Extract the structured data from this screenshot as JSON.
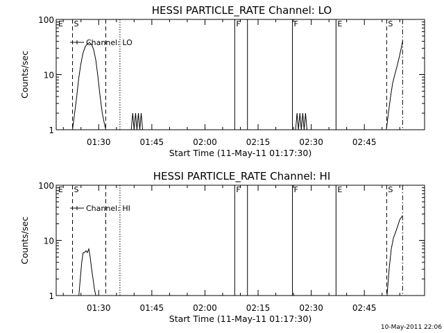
{
  "chart_data": [
    {
      "type": "line",
      "title": "HESSI PARTICLE_RATE Channel: LO",
      "xlabel": "Start Time (11-May-11 01:17:30)",
      "ylabel": "Counts/sec",
      "yscale": "log",
      "ylim": [
        1,
        100
      ],
      "y_ticks": [
        1,
        10,
        100
      ],
      "y_tick_labels": [
        "1",
        "10",
        "100"
      ],
      "xlim_minutes": [
        78.0,
        182.0
      ],
      "x_ticks_minutes": [
        90,
        105,
        120,
        135,
        150,
        165
      ],
      "x_tick_labels": [
        "01:30",
        "01:45",
        "02:00",
        "02:15",
        "02:30",
        "02:45"
      ],
      "legend": "Channel: LO",
      "legend_placement": "top-left",
      "series": [
        {
          "name": "Channel: LO",
          "segments": [
            {
              "x": [
                82.6,
                83.2,
                83.8,
                84.4,
                85.0,
                85.6,
                86.2,
                86.8,
                87.4,
                88.0,
                88.6,
                89.2,
                89.8,
                90.4,
                91.0,
                91.6,
                92.0
              ],
              "y": [
                1,
                2,
                4,
                9,
                16,
                25,
                32,
                36,
                38,
                35,
                28,
                18,
                9,
                4,
                2,
                1.3,
                1
              ]
            },
            {
              "x": [
                99.2,
                99.6,
                100.0,
                100.4,
                100.8,
                101.2,
                101.6,
                102.0,
                102.4
              ],
              "y": [
                1,
                2,
                1,
                2,
                1,
                2,
                1,
                2,
                1
              ]
            },
            {
              "x": [
                145.6,
                146.0,
                146.4,
                146.8,
                147.2,
                147.6,
                148.0,
                148.4,
                148.8
              ],
              "y": [
                1,
                2,
                1,
                2,
                1,
                2,
                1,
                2,
                1
              ]
            },
            {
              "x": [
                171.2,
                171.8,
                172.4,
                173.0,
                173.6,
                174.2,
                174.8,
                175.4,
                175.8
              ],
              "y": [
                1,
                2,
                4,
                7,
                10,
                14,
                20,
                30,
                40
              ]
            }
          ]
        }
      ],
      "markers": [
        {
          "x": 78.2,
          "style": "none",
          "label": "E"
        },
        {
          "x": 82.6,
          "style": "dashed",
          "label": "S"
        },
        {
          "x": 92.0,
          "style": "dashed",
          "label": ""
        },
        {
          "x": 96.0,
          "style": "dotted",
          "label": ""
        },
        {
          "x": 128.4,
          "style": "solid",
          "label": "F"
        },
        {
          "x": 132.0,
          "style": "solid",
          "label": ""
        },
        {
          "x": 144.7,
          "style": "solid",
          "label": "F"
        },
        {
          "x": 157.0,
          "style": "solid",
          "label": "E"
        },
        {
          "x": 171.3,
          "style": "dashed",
          "label": "S"
        },
        {
          "x": 175.8,
          "style": "dashdot",
          "label": ""
        }
      ]
    },
    {
      "type": "line",
      "title": "HESSI PARTICLE_RATE Channel: HI",
      "xlabel": "Start Time (11-May-11 01:17:30)",
      "ylabel": "Counts/sec",
      "yscale": "log",
      "ylim": [
        1,
        100
      ],
      "y_ticks": [
        1,
        10,
        100
      ],
      "y_tick_labels": [
        "1",
        "10",
        "100"
      ],
      "xlim_minutes": [
        78.0,
        182.0
      ],
      "x_ticks_minutes": [
        90,
        105,
        120,
        135,
        150,
        165
      ],
      "x_tick_labels": [
        "01:30",
        "01:45",
        "02:00",
        "02:15",
        "02:30",
        "02:45"
      ],
      "legend": "Channel: HI",
      "legend_placement": "top-left",
      "series": [
        {
          "name": "Channel: HI",
          "segments": [
            {
              "x": [
                84.4,
                84.8,
                85.2,
                85.6,
                86.0,
                86.4,
                86.8,
                87.2,
                87.6,
                88.0,
                88.4,
                88.8,
                89.2
              ],
              "y": [
                1,
                2,
                4,
                6,
                6,
                6.5,
                6,
                7,
                5,
                3,
                2,
                1.3,
                1
              ]
            },
            {
              "x": [
                171.4,
                172.0,
                172.6,
                173.2,
                173.8,
                174.4,
                175.0,
                175.8
              ],
              "y": [
                1,
                3,
                7,
                11,
                14,
                18,
                24,
                28
              ]
            }
          ]
        }
      ],
      "markers": [
        {
          "x": 78.2,
          "style": "none",
          "label": "E"
        },
        {
          "x": 82.6,
          "style": "dashed",
          "label": "S"
        },
        {
          "x": 92.0,
          "style": "dashed",
          "label": ""
        },
        {
          "x": 96.0,
          "style": "dotted",
          "label": ""
        },
        {
          "x": 128.4,
          "style": "solid",
          "label": "F"
        },
        {
          "x": 132.0,
          "style": "solid",
          "label": ""
        },
        {
          "x": 144.7,
          "style": "solid",
          "label": "F"
        },
        {
          "x": 157.0,
          "style": "solid",
          "label": "E"
        },
        {
          "x": 171.3,
          "style": "dashed",
          "label": "S"
        },
        {
          "x": 175.8,
          "style": "dashdot",
          "label": ""
        }
      ]
    }
  ],
  "footer": {
    "date_stamp": "10-May-2011 22:06"
  }
}
